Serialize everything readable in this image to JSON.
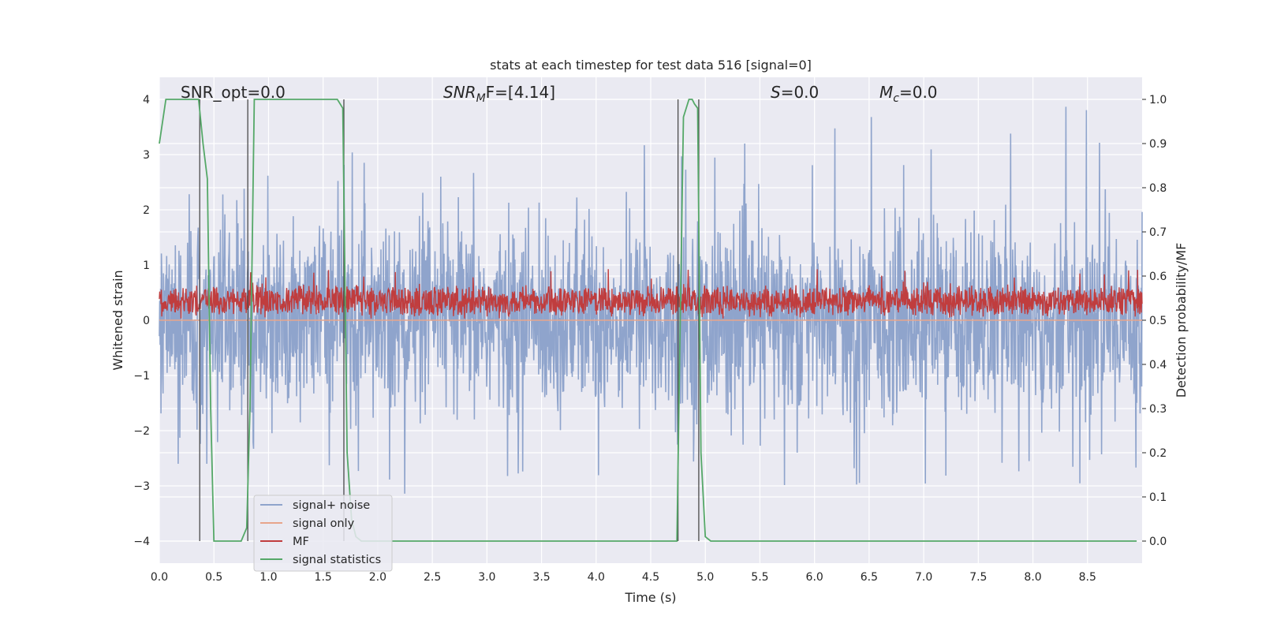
{
  "chart_data": {
    "type": "line",
    "title": "stats at each timestep for test data 516 [signal=0]",
    "xlabel": "Time (s)",
    "ylabel_left": "Whitened strain",
    "ylabel_right": "Detection probability/MF",
    "xlim": [
      0.0,
      9.0
    ],
    "ylim_left": [
      -4.4,
      4.4
    ],
    "ylim_right": [
      -0.05,
      1.05
    ],
    "grid": true,
    "x_ticks": [
      "0.0",
      "0.5",
      "1.0",
      "1.5",
      "2.0",
      "2.5",
      "3.0",
      "3.5",
      "4.0",
      "4.5",
      "5.0",
      "5.5",
      "6.0",
      "6.5",
      "7.0",
      "7.5",
      "8.0",
      "8.5"
    ],
    "y_ticks_left": [
      "−4",
      "−3",
      "−2",
      "−1",
      "0",
      "1",
      "2",
      "3",
      "4"
    ],
    "y_ticks_right": [
      "0.0",
      "0.1",
      "0.2",
      "0.3",
      "0.4",
      "0.5",
      "0.6",
      "0.7",
      "0.8",
      "0.9",
      "1.0"
    ],
    "annotations": {
      "snr_opt": "SNR_opt=0.0",
      "snr_mf_main": "SNR",
      "snr_mf_sub": "M",
      "snr_mf_rest": "F=[4.14]",
      "s_main": "S",
      "s_rest": "=0.0",
      "mc_main": "M",
      "mc_sub": "c",
      "mc_rest": "=0.0"
    },
    "legend": {
      "position": "lower-left",
      "entries": [
        {
          "label": "signal+ noise",
          "color": "#8fa4cc"
        },
        {
          "label": "signal only",
          "color": "#e8a58b"
        },
        {
          "label": "MF",
          "color": "#c03d3e"
        },
        {
          "label": "signal statistics",
          "color": "#55a868"
        }
      ]
    },
    "series": [
      {
        "name": "signal+ noise",
        "axis": "left",
        "color": "#8fa4cc",
        "description": "whitened noise, amplitude envelope approx -3.5 to 3.9",
        "envelope_pos": [
          2.5,
          3.0,
          2.8,
          3.2,
          3.1,
          2.9,
          3.8,
          3.4,
          3.3,
          3.1,
          3.2,
          3.6,
          3.5,
          3.7,
          3.5,
          3.6,
          3.9,
          3.3
        ],
        "envelope_neg": [
          -2.6,
          -3.4,
          -3.1,
          -2.9,
          -3.2,
          -2.8,
          -3.0,
          -3.2,
          -3.3,
          -3.0,
          -3.4,
          -3.2,
          -3.1,
          -3.3,
          -3.2,
          -3.0,
          -3.3,
          -2.9
        ]
      },
      {
        "name": "signal only",
        "axis": "left",
        "color": "#e8a58b",
        "x": [
          0.0,
          9.0
        ],
        "y": [
          0.0,
          0.0
        ]
      },
      {
        "name": "MF",
        "axis": "left",
        "color": "#c03d3e",
        "description": "matched-filter output fluctuating approx 0.05 to 0.95, mean about 0.35"
      },
      {
        "name": "signal statistics",
        "axis": "right",
        "color": "#55a868",
        "x": [
          0.0,
          0.06,
          0.12,
          0.18,
          0.24,
          0.3,
          0.36,
          0.4,
          0.44,
          0.47,
          0.5,
          0.55,
          0.6,
          0.65,
          0.7,
          0.75,
          0.8,
          0.83,
          0.87,
          0.9,
          0.95,
          1.0,
          1.1,
          1.2,
          1.3,
          1.4,
          1.5,
          1.6,
          1.63,
          1.68,
          1.72,
          1.76,
          1.8,
          1.85,
          1.9,
          1.95,
          2.0,
          3.0,
          4.0,
          4.5,
          4.74,
          4.77,
          4.8,
          4.85,
          4.88,
          4.9,
          4.93,
          4.96,
          5.0,
          5.05,
          5.5,
          6.0,
          7.0,
          8.0,
          8.95
        ],
        "y": [
          0.9,
          1.0,
          1.0,
          1.0,
          1.0,
          1.0,
          1.0,
          0.9,
          0.82,
          0.3,
          0.0,
          0.0,
          0.0,
          0.0,
          0.0,
          0.0,
          0.03,
          0.3,
          1.0,
          1.0,
          1.0,
          1.0,
          1.0,
          1.0,
          1.0,
          1.0,
          1.0,
          1.0,
          1.0,
          0.98,
          0.2,
          0.05,
          0.01,
          0.0,
          0.0,
          0.0,
          0.0,
          0.0,
          0.0,
          0.0,
          0.0,
          0.5,
          0.96,
          1.0,
          1.0,
          0.99,
          0.98,
          0.2,
          0.01,
          0.0,
          0.0,
          0.0,
          0.0,
          0.0,
          0.0
        ]
      }
    ],
    "vertical_markers_x": [
      0.37,
      0.81,
      1.69,
      4.75,
      4.94
    ]
  }
}
